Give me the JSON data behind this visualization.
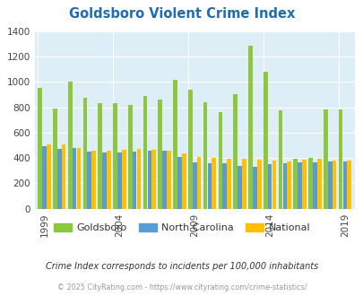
{
  "title": "Goldsboro Violent Crime Index",
  "years": [
    1999,
    2000,
    2001,
    2002,
    2003,
    2004,
    2005,
    2006,
    2007,
    2008,
    2009,
    2010,
    2011,
    2012,
    2013,
    2014,
    2015,
    2016,
    2017,
    2018,
    2019
  ],
  "goldsboro": [
    950,
    790,
    1005,
    875,
    830,
    830,
    815,
    885,
    860,
    1015,
    935,
    840,
    760,
    900,
    1285,
    1080,
    775,
    390,
    400,
    780,
    780
  ],
  "nc": [
    490,
    470,
    475,
    450,
    445,
    445,
    450,
    455,
    460,
    405,
    365,
    355,
    355,
    340,
    330,
    350,
    355,
    365,
    365,
    375,
    375
  ],
  "national": [
    505,
    505,
    480,
    460,
    455,
    465,
    470,
    465,
    455,
    435,
    405,
    400,
    395,
    390,
    385,
    380,
    375,
    385,
    390,
    380,
    380
  ],
  "goldsboro_color": "#8dc63f",
  "nc_color": "#5b9bd5",
  "national_color": "#ffc000",
  "plot_bg": "#ddeef6",
  "ylim": [
    0,
    1400
  ],
  "yticks": [
    0,
    200,
    400,
    600,
    800,
    1000,
    1200,
    1400
  ],
  "xlabel_ticks": [
    1999,
    2004,
    2009,
    2014,
    2019
  ],
  "subtitle": "Crime Index corresponds to incidents per 100,000 inhabitants",
  "footer": "© 2025 CityRating.com - https://www.cityrating.com/crime-statistics/",
  "title_color": "#1f6cb0",
  "subtitle_color": "#333333",
  "footer_color": "#999999",
  "legend_labels": [
    "Goldsboro",
    "North Carolina",
    "National"
  ]
}
